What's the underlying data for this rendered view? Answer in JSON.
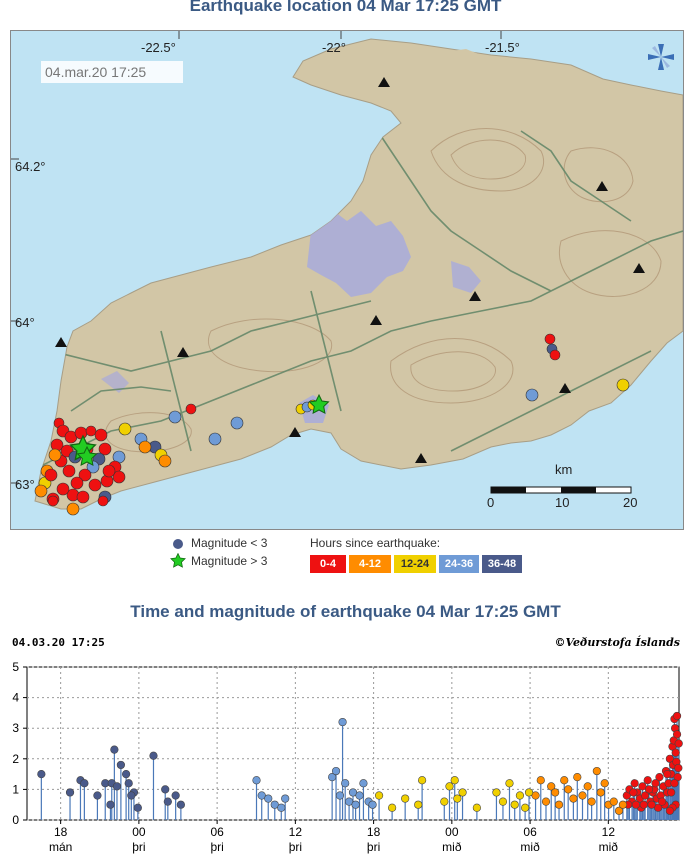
{
  "map": {
    "title": "Earthquake location   04 Mar 17:25 GMT",
    "timestamp": "04.mar.20  17:25",
    "lon_labels": [
      "-22.5°",
      "-22°",
      "-21.5°"
    ],
    "lat_labels": [
      "64.2°",
      "64°",
      "63°"
    ],
    "scale": {
      "unit": "km",
      "ticks": [
        "0",
        "10",
        "20"
      ]
    },
    "logo_icon": "imo-logo-icon",
    "colors": {
      "sea": "#bfe3f3",
      "land": "#d2c6a6",
      "lava": "#a8aadc",
      "contours": "#b49a7a",
      "roads": "#66886a",
      "frame": "#888888"
    }
  },
  "legend": {
    "small_label": "Magnitude < 3",
    "large_label": "Magnitude > 3",
    "hours_title": "Hours since earthquake:",
    "hours_bins": [
      {
        "label": "0-4",
        "color": "#ee1111"
      },
      {
        "label": "4-12",
        "color": "#ff8c00"
      },
      {
        "label": "12-24",
        "color": "#f0d000"
      },
      {
        "label": "24-36",
        "color": "#6f9bd6"
      },
      {
        "label": "36-48",
        "color": "#4a5a8a"
      }
    ]
  },
  "chart_title": "Time and magnitude of earthquake   04 Mar 17:25 GMT",
  "chart_header_left": "04.03.20 17:25",
  "chart_header_right": "©Veðurstofa Íslands",
  "chart_data": {
    "type": "scatter",
    "title": "Time and magnitude of earthquake   04 Mar 17:25 GMT",
    "xlabel": "",
    "ylabel": "",
    "ylim": [
      0,
      5
    ],
    "yticks": [
      0,
      1,
      2,
      3,
      4,
      5
    ],
    "xlim_hours": [
      -50,
      0
    ],
    "x_unit": "hours before 04.03.20 17:25",
    "x_ticks": [
      {
        "hours": -47.42,
        "hour_label": "18",
        "day_label": "mán"
      },
      {
        "hours": -41.42,
        "hour_label": "00",
        "day_label": "þri"
      },
      {
        "hours": -35.42,
        "hour_label": "06",
        "day_label": "þri"
      },
      {
        "hours": -29.42,
        "hour_label": "12",
        "day_label": "þri"
      },
      {
        "hours": -23.42,
        "hour_label": "18",
        "day_label": "þri"
      },
      {
        "hours": -17.42,
        "hour_label": "00",
        "day_label": "mið"
      },
      {
        "hours": -11.42,
        "hour_label": "06",
        "day_label": "mið"
      },
      {
        "hours": -5.42,
        "hour_label": "12",
        "day_label": "mið"
      }
    ],
    "series": [
      {
        "color": "#ee1111",
        "points": [
          [
            -4.0,
            0.8
          ],
          [
            -3.8,
            1.0
          ],
          [
            -3.6,
            0.6
          ],
          [
            -3.4,
            1.2
          ],
          [
            -3.2,
            0.9
          ],
          [
            -3.0,
            0.7
          ],
          [
            -2.8,
            1.1
          ],
          [
            -2.6,
            0.8
          ],
          [
            -2.4,
            1.3
          ],
          [
            -2.2,
            0.6
          ],
          [
            -2.0,
            0.9
          ],
          [
            -1.9,
            1.0
          ],
          [
            -1.7,
            0.7
          ],
          [
            -1.5,
            1.4
          ],
          [
            -1.4,
            0.8
          ],
          [
            -1.2,
            1.1
          ],
          [
            -1.0,
            1.6
          ],
          [
            -0.9,
            0.9
          ],
          [
            -0.8,
            1.2
          ],
          [
            -0.7,
            2.0
          ],
          [
            -0.6,
            1.5
          ],
          [
            -0.5,
            2.4
          ],
          [
            -0.45,
            1.8
          ],
          [
            -0.4,
            2.6
          ],
          [
            -0.35,
            3.3
          ],
          [
            -0.3,
            3.0
          ],
          [
            -0.25,
            2.2
          ],
          [
            -0.2,
            1.9
          ],
          [
            -0.15,
            2.8
          ],
          [
            -0.1,
            1.4
          ],
          [
            -0.05,
            1.7
          ],
          [
            -0.02,
            2.5
          ],
          [
            -0.25,
            0.5
          ],
          [
            -0.5,
            0.4
          ],
          [
            -0.7,
            0.3
          ],
          [
            -1.1,
            0.5
          ],
          [
            -1.6,
            0.4
          ],
          [
            -2.1,
            0.5
          ],
          [
            -2.9,
            0.4
          ],
          [
            -3.3,
            0.5
          ],
          [
            -0.15,
            3.4
          ],
          [
            -0.35,
            1.2
          ],
          [
            -0.6,
            0.9
          ],
          [
            -0.9,
            1.5
          ],
          [
            -1.3,
            0.6
          ],
          [
            -1.8,
            1.2
          ],
          [
            -2.3,
            1.0
          ],
          [
            -2.7,
            0.5
          ],
          [
            -3.5,
            0.9
          ],
          [
            -3.9,
            0.5
          ]
        ]
      },
      {
        "color": "#ff8c00",
        "points": [
          [
            -11.0,
            0.8
          ],
          [
            -10.6,
            1.3
          ],
          [
            -10.2,
            0.6
          ],
          [
            -9.8,
            1.1
          ],
          [
            -9.5,
            0.9
          ],
          [
            -9.2,
            0.5
          ],
          [
            -8.8,
            1.3
          ],
          [
            -8.5,
            1.0
          ],
          [
            -8.1,
            0.7
          ],
          [
            -7.8,
            1.4
          ],
          [
            -7.4,
            0.8
          ],
          [
            -7.0,
            1.1
          ],
          [
            -6.7,
            0.6
          ],
          [
            -6.3,
            1.6
          ],
          [
            -6.0,
            0.9
          ],
          [
            -5.7,
            1.2
          ],
          [
            -5.4,
            0.5
          ],
          [
            -5.0,
            0.6
          ],
          [
            -4.6,
            0.3
          ],
          [
            -4.3,
            0.5
          ]
        ]
      },
      {
        "color": "#f0d000",
        "points": [
          [
            -23.0,
            0.8
          ],
          [
            -22.0,
            0.4
          ],
          [
            -21.0,
            0.7
          ],
          [
            -20.0,
            0.5
          ],
          [
            -19.7,
            1.3
          ],
          [
            -18.0,
            0.6
          ],
          [
            -17.6,
            1.1
          ],
          [
            -17.2,
            1.3
          ],
          [
            -17.0,
            0.7
          ],
          [
            -16.6,
            0.9
          ],
          [
            -15.5,
            0.4
          ],
          [
            -14.0,
            0.9
          ],
          [
            -13.5,
            0.6
          ],
          [
            -13.0,
            1.2
          ],
          [
            -12.6,
            0.5
          ],
          [
            -12.2,
            0.8
          ],
          [
            -11.8,
            0.4
          ],
          [
            -11.5,
            0.9
          ]
        ]
      },
      {
        "color": "#6f9bd6",
        "points": [
          [
            -32.4,
            1.3
          ],
          [
            -32.0,
            0.8
          ],
          [
            -31.5,
            0.7
          ],
          [
            -31.0,
            0.5
          ],
          [
            -30.5,
            0.4
          ],
          [
            -30.2,
            0.7
          ],
          [
            -26.6,
            1.4
          ],
          [
            -26.3,
            1.6
          ],
          [
            -26.0,
            0.8
          ],
          [
            -25.8,
            3.2
          ],
          [
            -25.6,
            1.2
          ],
          [
            -25.3,
            0.6
          ],
          [
            -25.0,
            0.9
          ],
          [
            -24.8,
            0.5
          ],
          [
            -24.5,
            0.8
          ],
          [
            -24.2,
            1.2
          ],
          [
            -23.8,
            0.6
          ],
          [
            -23.5,
            0.5
          ]
        ]
      },
      {
        "color": "#4a5a8a",
        "points": [
          [
            -48.9,
            1.5
          ],
          [
            -46.7,
            0.9
          ],
          [
            -45.9,
            1.3
          ],
          [
            -45.6,
            1.2
          ],
          [
            -44.6,
            0.8
          ],
          [
            -44.0,
            1.2
          ],
          [
            -43.5,
            1.2
          ],
          [
            -43.3,
            2.3
          ],
          [
            -43.1,
            1.1
          ],
          [
            -42.8,
            1.8
          ],
          [
            -42.4,
            1.5
          ],
          [
            -42.2,
            1.2
          ],
          [
            -41.8,
            0.9
          ],
          [
            -41.5,
            0.4
          ],
          [
            -40.3,
            2.1
          ],
          [
            -39.4,
            1.0
          ],
          [
            -39.2,
            0.6
          ],
          [
            -38.6,
            0.8
          ],
          [
            -38.2,
            0.5
          ],
          [
            -43.6,
            0.5
          ],
          [
            -42.0,
            0.8
          ]
        ]
      }
    ]
  }
}
